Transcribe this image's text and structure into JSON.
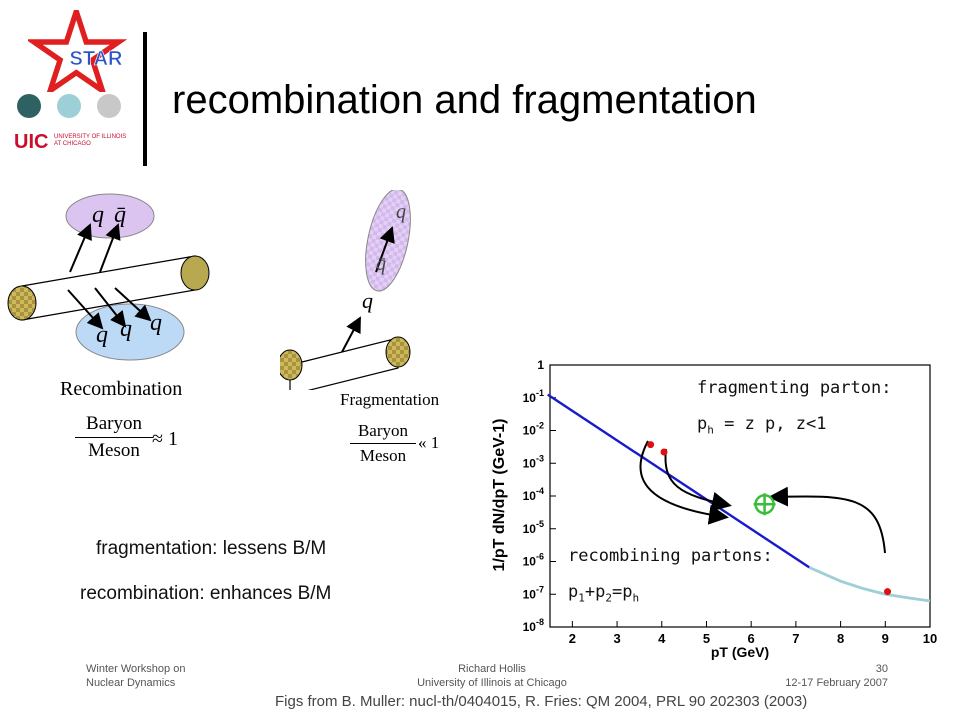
{
  "slide": {
    "title": "recombination and fragmentation",
    "logo_star_text": "STAR",
    "logo_uic": "UIC",
    "logo_uic_sub_1": "UNIVERSITY OF ILLINOIS",
    "logo_uic_sub_2": "AT CHICAGO"
  },
  "diagram_left": {
    "quark_labels_top": [
      "q",
      "q̄"
    ],
    "quark_labels_bottom": [
      "q",
      "q",
      "q"
    ],
    "label": "Recombination",
    "ratio_num": "Baryon",
    "ratio_den": "Meson",
    "ratio_rel": "≈ 1"
  },
  "diagram_right": {
    "quark_labels_top": [
      "q",
      "q̄"
    ],
    "parton_label": "q",
    "label": "Fragmentation",
    "ratio_num": "Baryon",
    "ratio_den": "Meson",
    "ratio_rel": "« 1"
  },
  "captions": {
    "fragmentation": "fragmentation: lessens B/M",
    "recombination": "recombination: enhances B/M"
  },
  "chart_annotations": {
    "frag_line1": "fragmenting parton:",
    "frag_line2_a": "p",
    "frag_line2_sub": "h",
    "frag_line2_b": " = z p, z<1",
    "recomb_line1": "recombining partons:",
    "recomb_p": "p",
    "recomb_sub1": "1",
    "recomb_plus": "+p",
    "recomb_sub2": "2",
    "recomb_eq": "=p",
    "recomb_subh": "h"
  },
  "chart_data": {
    "type": "line",
    "xlabel": "pT (GeV)",
    "ylabel": "1/pT dN/dpT (GeV-1)",
    "ylog": true,
    "xlim": [
      1.5,
      10
    ],
    "ylim": [
      1e-08,
      1
    ],
    "x_ticks": [
      "2",
      "3",
      "4",
      "5",
      "6",
      "7",
      "8",
      "9",
      "10"
    ],
    "y_ticks": [
      "1",
      "10-1",
      "10-2",
      "10-3",
      "10-4",
      "10-5",
      "10-6",
      "10-7",
      "10-8"
    ],
    "series": [
      {
        "color": "#1a1acc",
        "x": [
          1.45,
          7.3
        ],
        "y": [
          0.125,
          6.6e-07
        ]
      },
      {
        "color": "#9ecfd6",
        "x": [
          7.3,
          8.0,
          8.5,
          9.0,
          9.5,
          10.0
        ],
        "y": [
          6.6e-07,
          2.5e-07,
          1.5e-07,
          1e-07,
          7.8e-08,
          6.2e-08
        ]
      }
    ],
    "points": [
      {
        "x": 3.75,
        "y": 0.0037,
        "color": "#dd1111"
      },
      {
        "x": 4.05,
        "y": 0.0022,
        "color": "#dd1111"
      },
      {
        "x": 9.05,
        "y": 1.2e-07,
        "color": "#dd1111"
      }
    ],
    "target": {
      "x": 6.3,
      "y": 5.6e-05,
      "color": "#3bbd3b"
    }
  },
  "footer": {
    "left_1": "Winter Workshop on",
    "left_2": "Nuclear Dynamics",
    "center_1": "Richard Hollis",
    "center_2": "University of Illinois at Chicago",
    "right_1": "30",
    "right_2": "12-17 February 2007",
    "credit": "Figs from B. Muller: nucl-th/0404015, R. Fries: QM 2004, PRL 90  202303 (2003)"
  },
  "colors": {
    "dot1": "#2e6262",
    "dot2": "#9ccfd6",
    "dot3": "#c8c8c8",
    "star": "#e02020",
    "star_text": "#2a55c8"
  }
}
